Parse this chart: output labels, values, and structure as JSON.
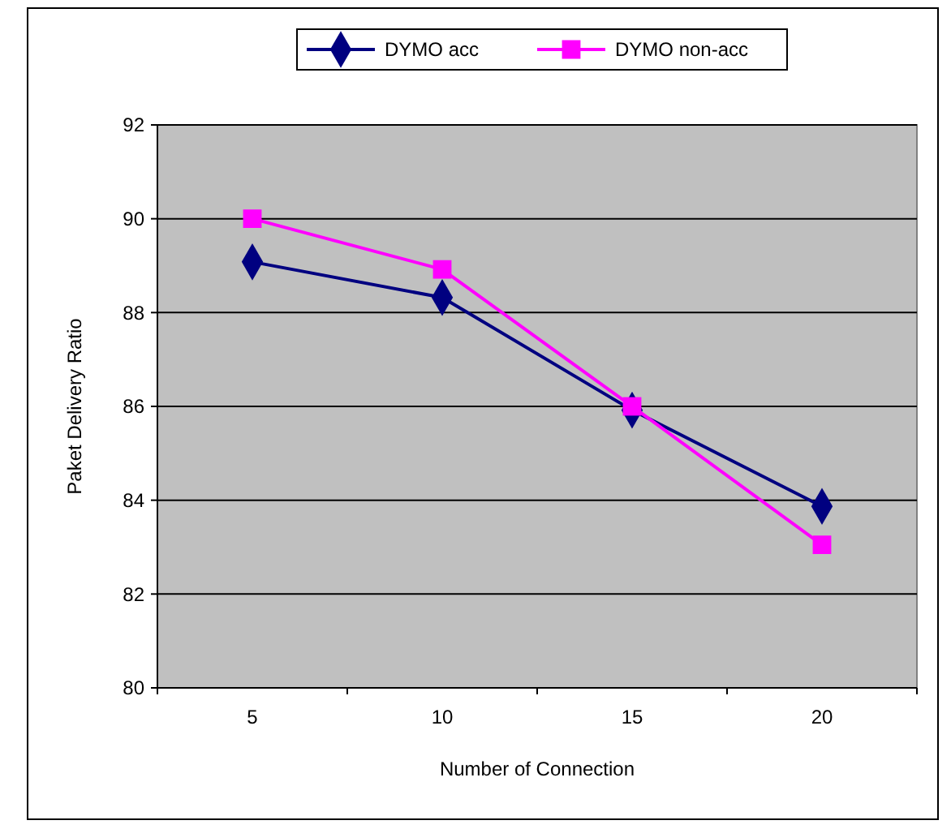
{
  "chart_data": {
    "type": "line",
    "xlabel": "Number of Connection",
    "ylabel": "Paket Delivery Ratio",
    "categories": [
      "5",
      "10",
      "15",
      "20"
    ],
    "ylim": [
      80,
      92
    ],
    "yticks": [
      80,
      82,
      84,
      86,
      88,
      90,
      92
    ],
    "grid": "y",
    "legend": "top",
    "series": [
      {
        "name": "DYMO acc",
        "color": "#000080",
        "marker": "diamond",
        "values": [
          89.08,
          88.32,
          85.92,
          83.87
        ]
      },
      {
        "name": "DYMO non-acc",
        "color": "#ff00ff",
        "marker": "square",
        "values": [
          90.0,
          88.92,
          86.0,
          83.05
        ]
      }
    ]
  }
}
